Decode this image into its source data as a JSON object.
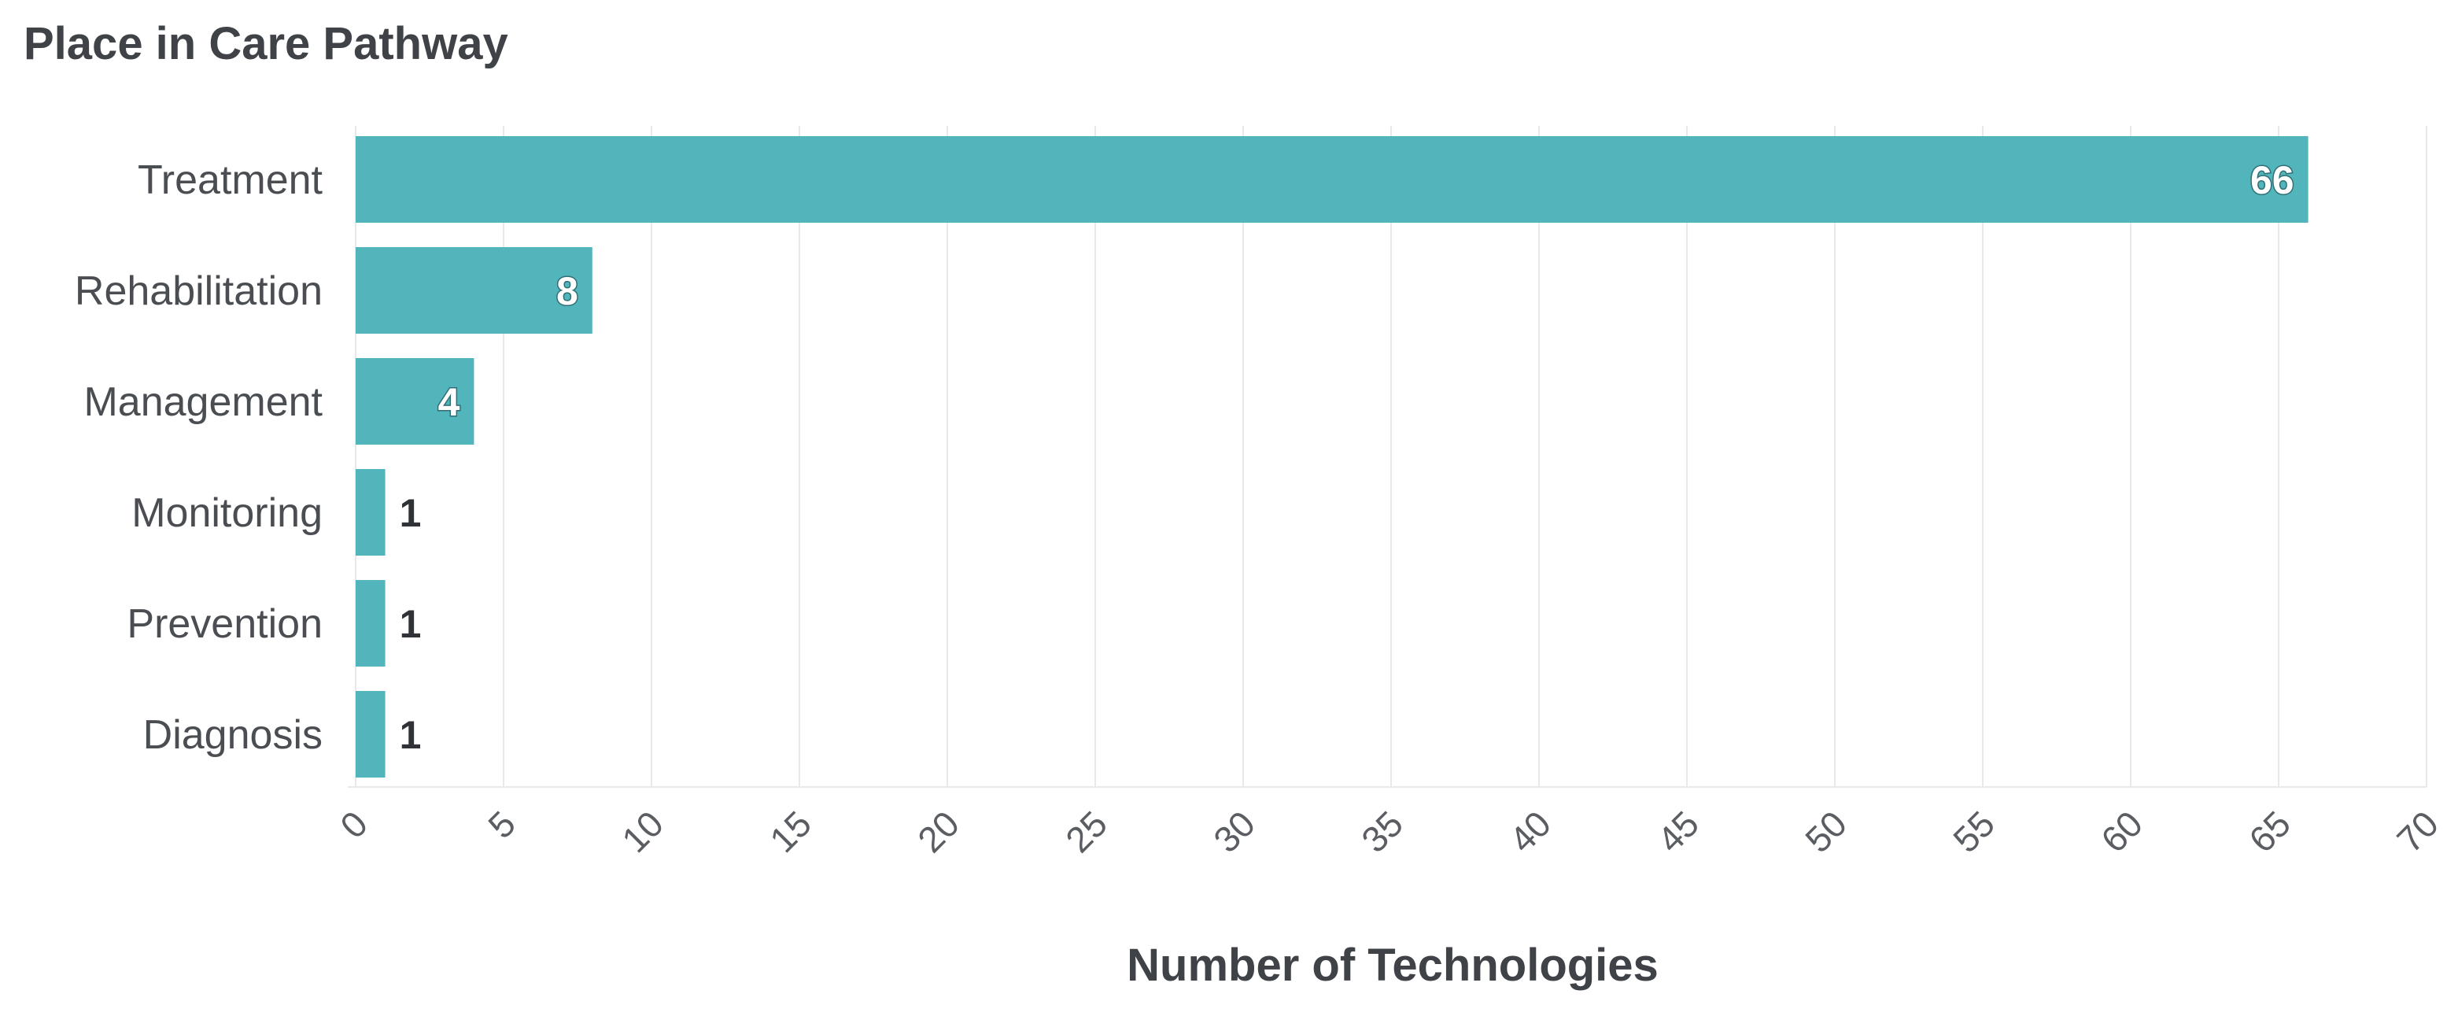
{
  "chart_data": {
    "type": "bar",
    "orientation": "horizontal",
    "title": "Place in Care Pathway",
    "xlabel": "Number of Technologies",
    "ylabel": "",
    "categories": [
      "Treatment",
      "Rehabilitation",
      "Management",
      "Monitoring",
      "Prevention",
      "Diagnosis"
    ],
    "values": [
      66,
      8,
      4,
      1,
      1,
      1
    ],
    "xlim": [
      0,
      70
    ],
    "x_ticks": [
      "0",
      "5",
      "10",
      "15",
      "20",
      "25",
      "30",
      "35",
      "40",
      "45",
      "50",
      "55",
      "60",
      "65",
      "70"
    ],
    "grid": true,
    "legend": "none",
    "data_labels": [
      "66",
      "8",
      "4",
      "1",
      "1",
      "1"
    ],
    "bar_color": "#52b5bb"
  }
}
